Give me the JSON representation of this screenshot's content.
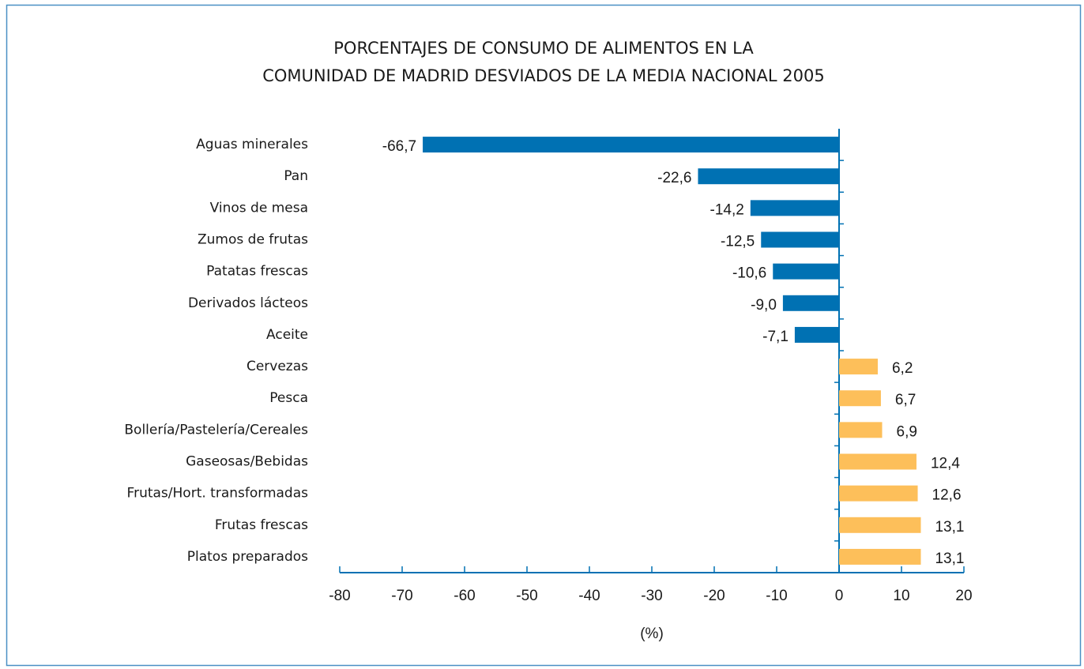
{
  "chart_data": {
    "type": "hbar",
    "title": [
      "PORCENTAJES DE CONSUMO DE ALIMENTOS EN LA",
      "COMUNIDAD DE MADRID DESVIADOS DE LA MEDIA NACIONAL 2005"
    ],
    "x_label": "(%)",
    "categories": [
      "Aguas minerales",
      "Pan",
      "Vinos de mesa",
      "Zumos de frutas",
      "Patatas frescas",
      "Derivados lácteos",
      "Aceite",
      "Cervezas",
      "Pesca",
      "Bollería/Pastelería/Cereales",
      "Gaseosas/Bebidas",
      "Frutas/Hort. transformadas",
      "Frutas frescas",
      "Platos preparados"
    ],
    "values": [
      -66.7,
      -22.6,
      -14.2,
      -12.5,
      -10.6,
      -9.0,
      -7.1,
      6.2,
      6.7,
      6.9,
      12.4,
      12.6,
      13.1,
      13.1
    ],
    "value_labels": [
      "-66,7",
      "-22,6",
      "-14,2",
      "-12,5",
      "-10,6",
      "-9,0",
      "-7,1",
      "6,2",
      "6,7",
      "6,9",
      "12,4",
      "12,6",
      "13,1",
      "13,1"
    ],
    "negative_color": "#0071b3",
    "positive_color": "#fdbf5a",
    "xlim": [
      -80,
      20
    ],
    "xticks": [
      -80,
      -70,
      -60,
      -50,
      -40,
      -30,
      -20,
      -10,
      0,
      10,
      20
    ]
  }
}
